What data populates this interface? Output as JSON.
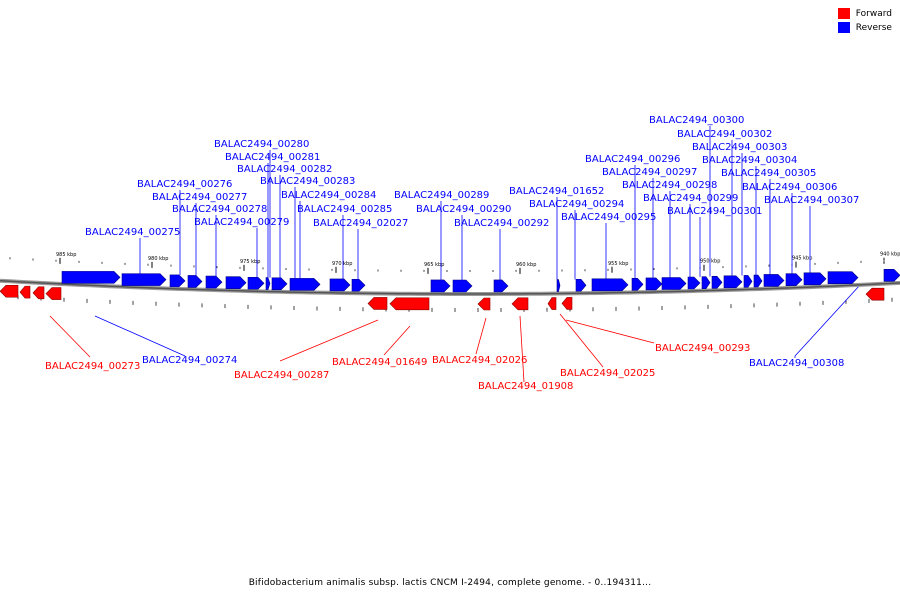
{
  "legend": {
    "forward": {
      "label": "Forward",
      "color": "#ff0000"
    },
    "reverse": {
      "label": "Reverse",
      "color": "#0000ff"
    }
  },
  "caption": "Bifidobacterium animalis subsp. lactis CNCM I-2494, complete genome. - 0..194311...",
  "ticks": [
    "985 kbp",
    "980 kbp",
    "975 kbp",
    "970 kbp",
    "965 kbp",
    "960 kbp",
    "955 kbp",
    "950 kbp",
    "945 kbp",
    "940 kbp"
  ],
  "reverse_labels": [
    "BALAC2494_00275",
    "BALAC2494_00276",
    "BALAC2494_00277",
    "BALAC2494_00278",
    "BALAC2494_00279",
    "BALAC2494_00280",
    "BALAC2494_00281",
    "BALAC2494_00282",
    "BALAC2494_00283",
    "BALAC2494_00284",
    "BALAC2494_00285",
    "BALAC2494_02027",
    "BALAC2494_00289",
    "BALAC2494_00290",
    "BALAC2494_00292",
    "BALAC2494_01652",
    "BALAC2494_00294",
    "BALAC2494_00295",
    "BALAC2494_00296",
    "BALAC2494_00297",
    "BALAC2494_00298",
    "BALAC2494_00299",
    "BALAC2494_00300",
    "BALAC2494_00301",
    "BALAC2494_00302",
    "BALAC2494_00303",
    "BALAC2494_00304",
    "BALAC2494_00305",
    "BALAC2494_00306",
    "BALAC2494_00307",
    "BALAC2494_00274",
    "BALAC2494_00308"
  ],
  "forward_labels": [
    "BALAC2494_00273",
    "BALAC2494_00287",
    "BALAC2494_01649",
    "BALAC2494_02026",
    "BALAC2494_01908",
    "BALAC2494_02025",
    "BALAC2494_00293"
  ]
}
